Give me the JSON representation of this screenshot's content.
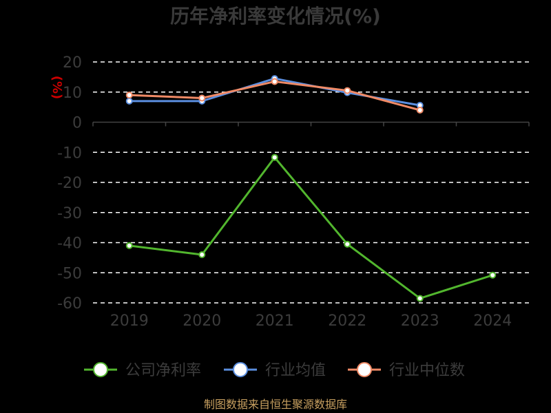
{
  "chart_data": {
    "type": "line",
    "title": "历年净利率变化情况(%)",
    "ylabel": "(%)",
    "categories": [
      "2019",
      "2020",
      "2021",
      "2022",
      "2023",
      "2024"
    ],
    "yticks": [
      "20",
      "10",
      "0",
      "-10",
      "-20",
      "-30",
      "-40",
      "-50",
      "-60"
    ],
    "ylim": [
      -60,
      20
    ],
    "grid": true,
    "legend_position": "bottom",
    "series": [
      {
        "name": "公司净利率",
        "color": "#52b62e",
        "values": [
          -41.0,
          -44.0,
          -11.7,
          -40.5,
          -58.5,
          -50.8
        ]
      },
      {
        "name": "行业均值",
        "color": "#5b8fe0",
        "values": [
          7.0,
          7.0,
          14.5,
          9.8,
          5.6,
          null
        ]
      },
      {
        "name": "行业中位数",
        "color": "#f08a66",
        "values": [
          9.0,
          8.0,
          13.5,
          10.5,
          4.0,
          null
        ]
      }
    ]
  },
  "footer": {
    "source": "制图数据来自恒生聚源数据库"
  }
}
